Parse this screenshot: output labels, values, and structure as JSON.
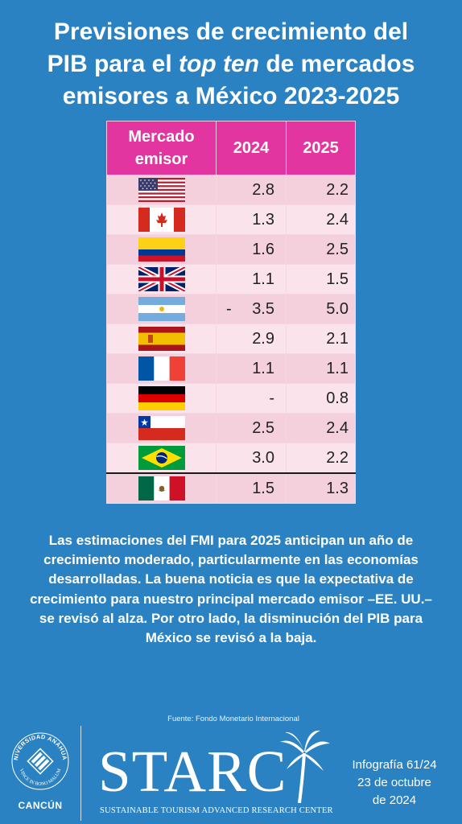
{
  "title": {
    "line1": "Previsiones de crecimiento del",
    "line2_pre": "PIB para el ",
    "line2_em": "top ten",
    "line2_post": " de mercados",
    "line3": "emisores a México 2023-2025"
  },
  "table": {
    "headers": [
      "Mercado emisor",
      "2024",
      "2025"
    ],
    "rows": [
      {
        "flag": "usa-flag",
        "v2024": "2.8",
        "v2025": "2.2"
      },
      {
        "flag": "canada-flag",
        "v2024": "1.3",
        "v2025": "2.4"
      },
      {
        "flag": "colombia-flag",
        "v2024": "1.6",
        "v2025": "2.5"
      },
      {
        "flag": "uk-flag",
        "v2024": "1.1",
        "v2025": "1.5"
      },
      {
        "flag": "argentina-flag",
        "v2024_prefix": "-",
        "v2024": "3.5",
        "v2025": "5.0"
      },
      {
        "flag": "spain-flag",
        "v2024": "2.9",
        "v2025": "2.1"
      },
      {
        "flag": "france-flag",
        "v2024": "1.1",
        "v2025": "1.1"
      },
      {
        "flag": "germany-flag",
        "v2024": "-",
        "v2025": "0.8"
      },
      {
        "flag": "chile-flag",
        "v2024": "2.5",
        "v2025": "2.4"
      },
      {
        "flag": "brazil-flag",
        "v2024": "3.0",
        "v2025": "2.2"
      },
      {
        "flag": "mexico-flag",
        "v2024": "1.5",
        "v2025": "1.3"
      }
    ]
  },
  "paragraph": "Las estimaciones del FMI para 2025 anticipan un año de crecimiento moderado, particularmente en las economías desarrolladas. La buena noticia es que la expectativa de crecimiento para nuestro principal mercado emisor –EE. UU.– se revisó al alza. Por otro lado, la disminución del PIB para México se revisó a la baja.",
  "source": "Fuente: Fondo Monetario Internacional",
  "footer": {
    "university_ring_top": "UNIVERSIDAD ANÁHUAC",
    "university_ring_bottom": "VINCE IN BONO MALUM",
    "university_city": "CANCÚN",
    "brand": "STARC",
    "brand_subtitle": "SUSTAINABLE TOURISM ADVANCED RESEARCH CENTER",
    "info_line1": "Infografía 61/24",
    "info_line2": "23 de octubre",
    "info_line3": "de 2024"
  },
  "colors": {
    "background": "#2a82c2",
    "header_pink": "#e2359f",
    "row_dark": "#f4cfdc",
    "row_light": "#fbe3ec"
  }
}
